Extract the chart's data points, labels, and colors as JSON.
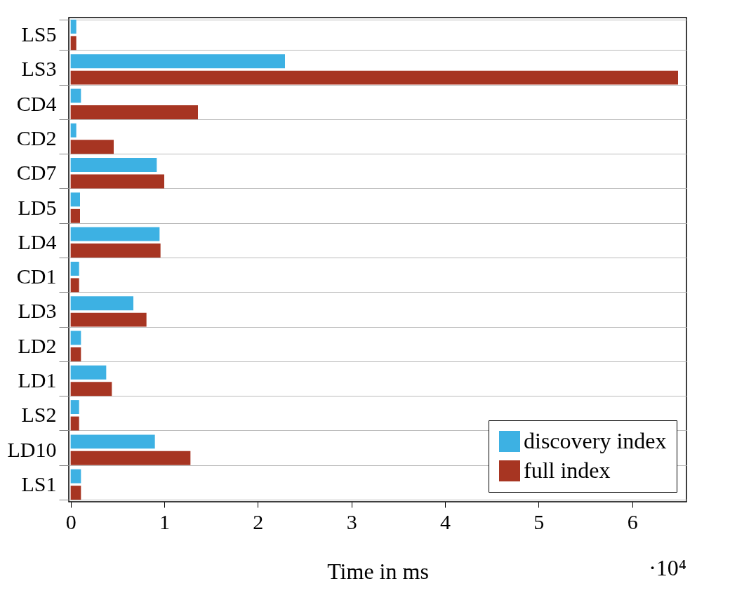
{
  "chart_data": {
    "type": "bar",
    "orientation": "horizontal",
    "xlabel": "Time in ms",
    "annotations": [
      "·10⁴"
    ],
    "categories": [
      "LS5",
      "LS3",
      "CD4",
      "CD2",
      "CD7",
      "LD5",
      "LD4",
      "CD1",
      "LD3",
      "LD2",
      "LD1",
      "LS2",
      "LD10",
      "LS1"
    ],
    "series": [
      {
        "name": "discovery index",
        "color": "#3db1e3",
        "values": [
          0.06,
          2.29,
          0.11,
          0.06,
          0.92,
          0.1,
          0.95,
          0.09,
          0.67,
          0.11,
          0.38,
          0.09,
          0.9,
          0.11
        ]
      },
      {
        "name": "full index",
        "color": "#a73522",
        "values": [
          0.06,
          6.49,
          1.36,
          0.46,
          1.0,
          0.1,
          0.96,
          0.09,
          0.81,
          0.11,
          0.44,
          0.09,
          1.28,
          0.11
        ]
      }
    ],
    "xlim": [
      -0.02,
      6.58
    ],
    "xticks": [
      0,
      1,
      2,
      3,
      4,
      5,
      6
    ],
    "grid": "y",
    "legend": "bottom right"
  }
}
